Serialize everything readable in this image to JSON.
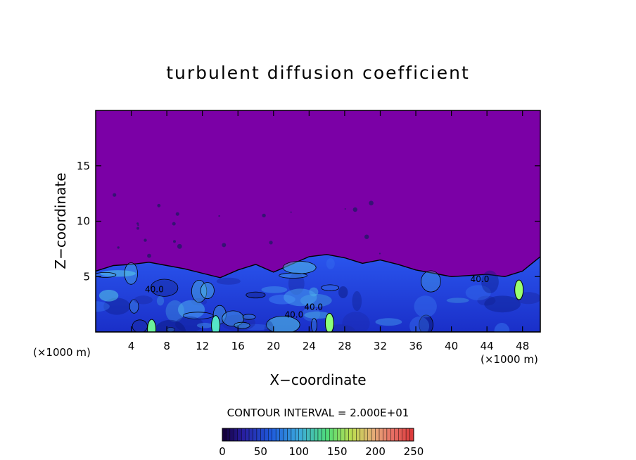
{
  "chart_data": {
    "type": "heatmap",
    "title": "turbulent diffusion coefficient",
    "xlabel": "X−coordinate",
    "ylabel": "Z−coordinate",
    "x_unit_left": "(×1000 m)",
    "x_unit_right": "(×1000 m)",
    "xlim": [
      0,
      50
    ],
    "ylim": [
      0,
      20
    ],
    "xticks": [
      4,
      8,
      12,
      16,
      20,
      24,
      28,
      32,
      36,
      40,
      44,
      48
    ],
    "xtick_labels": [
      "4",
      "8",
      "12",
      "16",
      "20",
      "24",
      "28",
      "32",
      "36",
      "40",
      "44",
      "48"
    ],
    "yticks": [
      5,
      10,
      15
    ],
    "ytick_labels": [
      "5",
      "10",
      "15"
    ],
    "contour_interval_text": "CONTOUR INTERVAL = 2.000E+01",
    "contour_labels": [
      {
        "text": "40.0",
        "x": 6.6,
        "z": 3.6
      },
      {
        "text": "40.0",
        "x": 22.3,
        "z": 1.3
      },
      {
        "text": "40.0",
        "x": 24.5,
        "z": 2.0
      },
      {
        "text": "40.0",
        "x": 43.2,
        "z": 4.5
      }
    ],
    "boundary_layer_top_z": [
      [
        0,
        5.5
      ],
      [
        2,
        6.0
      ],
      [
        4,
        6.1
      ],
      [
        6,
        6.3
      ],
      [
        8,
        6.0
      ],
      [
        10,
        5.7
      ],
      [
        12,
        5.3
      ],
      [
        14,
        4.9
      ],
      [
        16,
        5.6
      ],
      [
        18,
        6.1
      ],
      [
        20,
        5.4
      ],
      [
        22,
        6.1
      ],
      [
        24,
        6.8
      ],
      [
        26,
        7.0
      ],
      [
        28,
        6.7
      ],
      [
        30,
        6.2
      ],
      [
        32,
        6.5
      ],
      [
        34,
        6.1
      ],
      [
        36,
        5.6
      ],
      [
        38,
        5.3
      ],
      [
        40,
        5.0
      ],
      [
        42,
        5.1
      ],
      [
        44,
        5.2
      ],
      [
        46,
        5.0
      ],
      [
        48,
        5.5
      ],
      [
        50,
        6.8
      ]
    ],
    "colorbar": {
      "min": 0,
      "max": 250,
      "ticks": [
        0,
        50,
        100,
        150,
        200,
        250
      ],
      "tick_labels": [
        "0",
        "50",
        "100",
        "150",
        "200",
        "250"
      ]
    },
    "colors": {
      "background_field": "#7b00a6",
      "boundary_layer": "#1f3ae0",
      "frame": "#000000"
    }
  }
}
